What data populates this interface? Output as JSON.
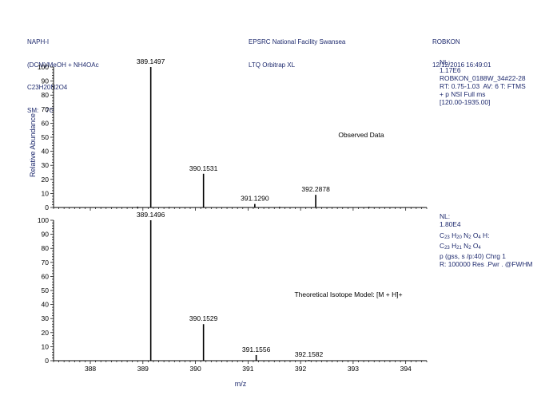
{
  "header": {
    "left": [
      "NAPH-I",
      "(DCM)/MeOH + NH4OAc",
      "C23H20N2O4",
      "SM:    7G"
    ],
    "middle": [
      "EPSRC National Facility Swansea",
      "LTQ Orbitrap XL"
    ],
    "right": [
      "ROBKON",
      "12/12/2016 16:49:01"
    ]
  },
  "info_top": [
    "NL:",
    "1.17E6",
    "ROBKON_0188W_34#22-28",
    "RT: 0.75-1.03  AV: 6 T: FTMS",
    "+ p NSI Full ms",
    "[120.00-1935.00]"
  ],
  "info_bottom": {
    "nl_label": "NL:",
    "nl_value": "1.80E4",
    "formula1": {
      "C": "23",
      "H": "20",
      "N": "2",
      "O": "4",
      "suffix": " H:"
    },
    "formula2": {
      "C": "23",
      "H": "21",
      "N": "2",
      "O": "4"
    },
    "line3": "p (gss, s /p:40) Chrg 1",
    "line4": "R: 100000 Res .Pwr . @FWHM"
  },
  "chart_data": [
    {
      "type": "bar",
      "title": "Observed Data",
      "ylabel": "Relative Abundance",
      "xlabel": "m/z",
      "xlim": [
        387.3,
        394.4
      ],
      "ylim": [
        0,
        100
      ],
      "peaks": [
        {
          "x": 389.1497,
          "y": 100,
          "label": "389.1497"
        },
        {
          "x": 390.1531,
          "y": 24,
          "label": "390.1531"
        },
        {
          "x": 391.129,
          "y": 2.5,
          "label": "391.1290"
        },
        {
          "x": 392.2878,
          "y": 9,
          "label": "392.2878"
        },
        {
          "x": 388.9,
          "y": 0.6,
          "label": ""
        },
        {
          "x": 389.5,
          "y": 0.4,
          "label": ""
        },
        {
          "x": 391.6,
          "y": 0.5,
          "label": ""
        },
        {
          "x": 393.3,
          "y": 0.5,
          "label": ""
        }
      ]
    },
    {
      "type": "bar",
      "title": "Theoretical Isotope Model: [M + H]+",
      "ylabel": "",
      "xlabel": "m/z",
      "xlim": [
        387.3,
        394.4
      ],
      "ylim": [
        0,
        100
      ],
      "peaks": [
        {
          "x": 389.1496,
          "y": 100,
          "label": "389.1496"
        },
        {
          "x": 390.1529,
          "y": 26,
          "label": "390.1529"
        },
        {
          "x": 391.1556,
          "y": 4,
          "label": "391.1556"
        },
        {
          "x": 392.1582,
          "y": 0.5,
          "label": "392.1582"
        }
      ]
    }
  ],
  "y_ticks": [
    0,
    10,
    20,
    30,
    40,
    50,
    60,
    70,
    80,
    90,
    100
  ],
  "x_ticks": [
    388,
    389,
    390,
    391,
    392,
    393,
    394
  ]
}
